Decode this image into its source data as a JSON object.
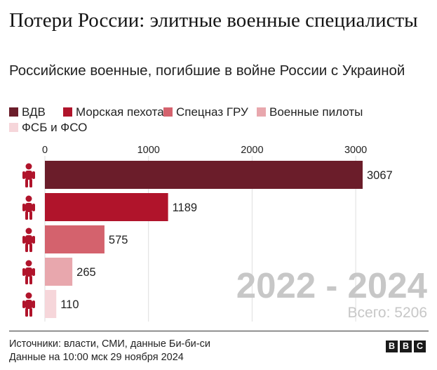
{
  "header": {
    "title": "Потери России: элитные военные специалисты",
    "subtitle": "Российские военные, погибшие в войне России с Украиной"
  },
  "chart_data": {
    "type": "bar",
    "orientation": "horizontal",
    "categories": [
      "ВДВ",
      "Морская пехота",
      "Спецназ ГРУ",
      "Военные пилоты",
      "ФСБ и ФСО"
    ],
    "values": [
      3067,
      1189,
      575,
      265,
      110
    ],
    "colors": [
      "#6b1d2a",
      "#b0142b",
      "#d4626d",
      "#e8a7ad",
      "#f6d6da"
    ],
    "x_ticks": [
      "0",
      "1000",
      "2000",
      "3000"
    ],
    "xlim": [
      0,
      3300
    ],
    "legend_position": "top",
    "grid": true,
    "annotation": {
      "period": "2022 - 2024",
      "total": "Всего: 5206"
    },
    "icon": "soldier-icon"
  },
  "footer": {
    "sources": "Источники: власти, СМИ, данные Би-би-си",
    "date": "Данные на 10:00 мск 29 ноября 2024",
    "logo": [
      "B",
      "B",
      "C"
    ]
  }
}
